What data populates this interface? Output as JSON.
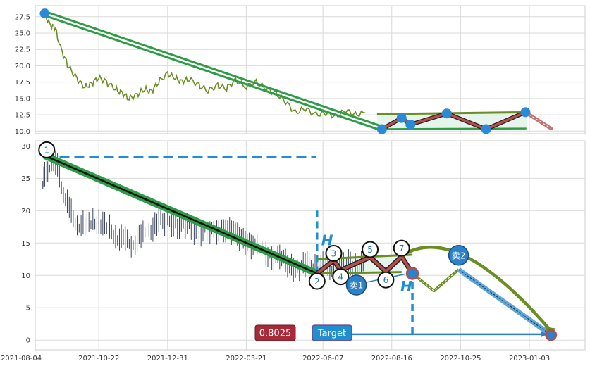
{
  "chart_data": [
    {
      "type": "line",
      "panel": "top",
      "y_ticks": [
        "27.5",
        "25.0",
        "22.5",
        "20.0",
        "17.5",
        "15.0",
        "12.5",
        "10.0"
      ],
      "ylim": [
        9.6,
        29.2
      ],
      "grid": true,
      "series": [
        {
          "role": "price",
          "color": "#6b8e23",
          "points": [
            [
              "2021-08-28",
              28.0
            ],
            [
              "2021-09-03",
              26.2
            ],
            [
              "2021-09-08",
              25.8
            ],
            [
              "2021-09-15",
              22.0
            ],
            [
              "2021-09-22",
              19.8
            ],
            [
              "2021-09-30",
              18.0
            ],
            [
              "2021-10-08",
              16.8
            ],
            [
              "2021-10-15",
              17.2
            ],
            [
              "2021-10-22",
              18.2
            ],
            [
              "2021-10-30",
              17.5
            ],
            [
              "2021-11-08",
              16.5
            ],
            [
              "2021-11-15",
              15.8
            ],
            [
              "2021-11-22",
              15.0
            ],
            [
              "2021-11-30",
              15.5
            ],
            [
              "2021-12-08",
              16.5
            ],
            [
              "2021-12-15",
              16.0
            ],
            [
              "2021-12-22",
              17.5
            ],
            [
              "2021-12-31",
              18.8
            ],
            [
              "2022-01-08",
              18.2
            ],
            [
              "2022-01-15",
              17.5
            ],
            [
              "2022-01-22",
              18.0
            ],
            [
              "2022-02-01",
              17.0
            ],
            [
              "2022-02-10",
              16.2
            ],
            [
              "2022-02-20",
              17.0
            ],
            [
              "2022-03-01",
              16.5
            ],
            [
              "2022-03-10",
              17.8
            ],
            [
              "2022-03-21",
              16.8
            ],
            [
              "2022-03-31",
              17.5
            ],
            [
              "2022-04-10",
              16.5
            ],
            [
              "2022-04-20",
              15.8
            ],
            [
              "2022-04-30",
              14.5
            ],
            [
              "2022-05-10",
              12.8
            ],
            [
              "2022-05-20",
              13.5
            ],
            [
              "2022-05-31",
              12.5
            ],
            [
              "2022-06-10",
              12.8
            ],
            [
              "2022-06-20",
              12.2
            ],
            [
              "2022-06-30",
              13.2
            ],
            [
              "2022-07-10",
              12.5
            ],
            [
              "2022-07-20",
              12.8
            ]
          ]
        }
      ],
      "support_line": {
        "from": [
          "2022-08-01",
          12.6
        ],
        "to": [
          "2022-12-31",
          12.9
        ]
      },
      "resistance_line": {
        "from": [
          "2022-08-01",
          10.3
        ],
        "to": [
          "2022-12-31",
          10.4
        ]
      },
      "trend_line": {
        "from": [
          "2021-08-28",
          28.0
        ],
        "to": [
          "2022-08-06",
          10.4
        ]
      },
      "zigzag": [
        [
          "2022-08-06",
          10.3
        ],
        [
          "2022-08-26",
          12.0
        ],
        [
          "2022-09-04",
          11.0
        ],
        [
          "2022-10-11",
          12.7
        ],
        [
          "2022-11-20",
          10.3
        ],
        [
          "2022-12-30",
          12.9
        ]
      ],
      "zigzag_projection": {
        "from": [
          "2022-12-30",
          12.9
        ],
        "to": [
          "2023-01-25",
          10.4
        ]
      },
      "key_points": [
        [
          "2021-08-28",
          28.0
        ],
        [
          "2022-08-06",
          10.3
        ],
        [
          "2022-08-26",
          12.0
        ],
        [
          "2022-09-04",
          11.0
        ],
        [
          "2022-10-11",
          12.7
        ],
        [
          "2022-11-20",
          10.3
        ],
        [
          "2022-12-30",
          12.9
        ]
      ]
    },
    {
      "type": "line",
      "panel": "bottom",
      "x_ticks": [
        "2021-08-04",
        "2021-10-22",
        "2021-12-31",
        "2022-03-21",
        "2022-06-07",
        "2022-08-16",
        "2022-10-25",
        "2023-01-03"
      ],
      "y_ticks": [
        "30",
        "25",
        "20",
        "15",
        "10",
        "5",
        "0"
      ],
      "ylim": [
        -1.5,
        30.8
      ],
      "grid": true,
      "series": [
        {
          "role": "ohlc",
          "color": "#3c4660",
          "points": [
            [
              "2021-08-26",
              24.0
            ],
            [
              "2021-08-30",
              26.0
            ],
            [
              "2021-09-04",
              27.5
            ],
            [
              "2021-09-10",
              26.5
            ],
            [
              "2021-09-16",
              23.0
            ],
            [
              "2021-09-22",
              20.0
            ],
            [
              "2021-09-30",
              18.0
            ],
            [
              "2021-10-08",
              17.5
            ],
            [
              "2021-10-16",
              18.5
            ],
            [
              "2021-10-24",
              18.0
            ],
            [
              "2021-11-02",
              17.0
            ],
            [
              "2021-11-10",
              16.0
            ],
            [
              "2021-11-18",
              15.2
            ],
            [
              "2021-11-26",
              15.0
            ],
            [
              "2021-12-04",
              16.0
            ],
            [
              "2021-12-12",
              16.8
            ],
            [
              "2021-12-20",
              18.2
            ],
            [
              "2021-12-31",
              18.5
            ],
            [
              "2022-01-10",
              17.8
            ],
            [
              "2022-01-20",
              17.5
            ],
            [
              "2022-02-01",
              17.0
            ],
            [
              "2022-02-12",
              16.5
            ],
            [
              "2022-02-24",
              17.5
            ],
            [
              "2022-03-06",
              17.0
            ],
            [
              "2022-03-16",
              16.0
            ],
            [
              "2022-03-26",
              15.0
            ],
            [
              "2022-04-06",
              14.0
            ],
            [
              "2022-04-16",
              13.0
            ],
            [
              "2022-04-26",
              12.5
            ],
            [
              "2022-05-06",
              11.5
            ],
            [
              "2022-05-14",
              11.0
            ],
            [
              "2022-05-22",
              11.8
            ],
            [
              "2022-06-01",
              11.0
            ],
            [
              "2022-06-10",
              11.5
            ],
            [
              "2022-06-20",
              11.0
            ],
            [
              "2022-07-01",
              11.8
            ],
            [
              "2022-07-10",
              11.5
            ],
            [
              "2022-07-20",
              12.0
            ]
          ]
        }
      ],
      "horizontal_dashed": {
        "from": "2021-08-28",
        "to": "2022-05-31",
        "y": 28.3
      },
      "vertical_dashed_1": {
        "x": "2022-06-01",
        "from": 10.3,
        "to": 20.0
      },
      "vertical_dashed_2": {
        "x": "2022-09-06",
        "from": 1.0,
        "to": 10.0
      },
      "trend_line": {
        "from": [
          "2021-08-28",
          28.5
        ],
        "to": [
          "2022-06-01",
          10.3
        ]
      },
      "support_line": {
        "from": [
          "2022-06-01",
          12.5
        ],
        "to": [
          "2022-09-06",
          13.2
        ]
      },
      "resistance_line": {
        "from": [
          "2022-06-01",
          10.3
        ],
        "to": [
          "2022-08-26",
          10.5
        ]
      },
      "zigzag": [
        [
          "2022-06-01",
          10.3
        ],
        [
          "2022-06-18",
          12.3
        ],
        [
          "2022-06-25",
          10.8
        ],
        [
          "2022-07-25",
          12.8
        ],
        [
          "2022-08-10",
          10.6
        ],
        [
          "2022-08-26",
          12.9
        ],
        [
          "2022-09-06",
          10.3
        ]
      ],
      "forecast_path": [
        [
          "2022-09-06",
          10.3
        ],
        [
          "2022-09-28",
          7.6
        ],
        [
          "2022-10-23",
          10.9
        ],
        [
          "2023-01-25",
          0.8
        ]
      ],
      "arc": {
        "from": [
          "2022-08-26",
          13.0
        ],
        "peak": [
          "2022-10-20",
          14.2
        ],
        "to": [
          "2023-01-25",
          1.4
        ]
      },
      "target_line": {
        "from": [
          "2022-07-01",
          0.9
        ],
        "to": [
          "2023-01-22",
          0.9
        ]
      },
      "target_vertical": {
        "x": "2022-09-06",
        "from": 0.9,
        "to": 10.0
      },
      "numbered_points": [
        {
          "label": "1",
          "x": "2021-08-30",
          "y": 29.4
        },
        {
          "label": "2",
          "x": "2022-06-01",
          "y": 9.1
        },
        {
          "label": "3",
          "x": "2022-06-18",
          "y": 13.4
        },
        {
          "label": "4",
          "x": "2022-06-25",
          "y": 9.8
        },
        {
          "label": "5",
          "x": "2022-07-25",
          "y": 14.0
        },
        {
          "label": "6",
          "x": "2022-08-10",
          "y": 9.3
        },
        {
          "label": "7",
          "x": "2022-08-26",
          "y": 14.2
        }
      ],
      "sell_points": [
        {
          "label": "卖1",
          "x": "2022-07-11",
          "y": 8.5
        },
        {
          "label": "卖2",
          "x": "2022-10-23",
          "y": 13.1
        }
      ],
      "h_label": "H",
      "ratio_label": "0.8025",
      "target_label": "Target",
      "target_value": 0.8
    }
  ],
  "colors": {
    "price_top": "#6b8e23",
    "ohlc": "#3c4660",
    "trend_green": "#2e9c46",
    "zigzag_red": "#b84c4c",
    "blue_dash": "#1f8fd0",
    "marker_blue": "#2b8ad6",
    "olive": "#6b8e23",
    "ratio_box": "#a62a37",
    "target_box": "#1f8fd0",
    "grid": "#d9d9d9",
    "fill_green": "#dff2e6"
  }
}
